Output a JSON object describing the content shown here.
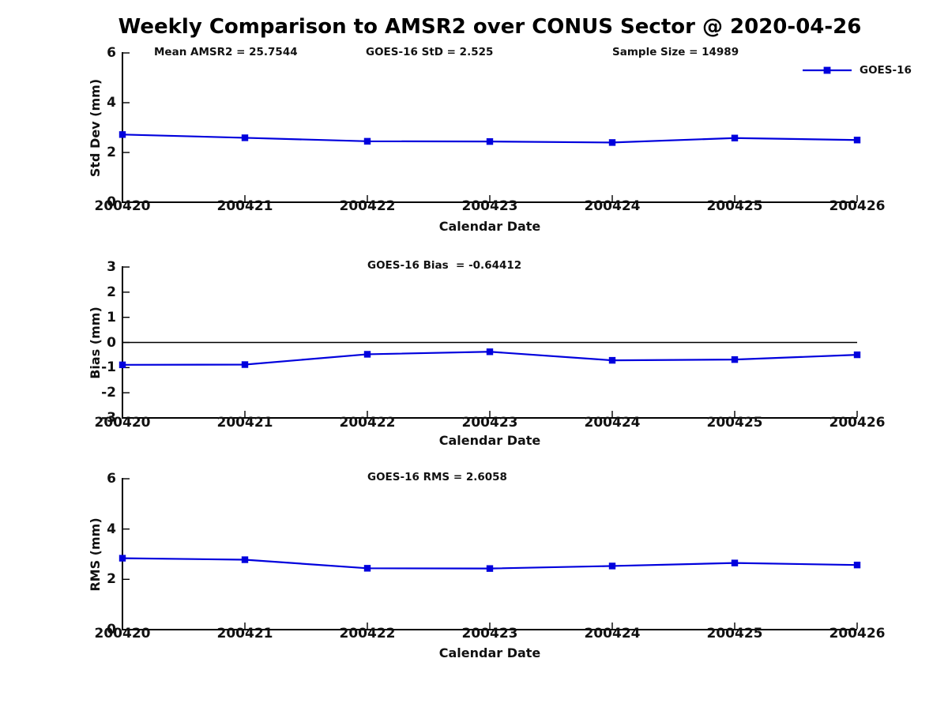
{
  "title": "Weekly Comparison to AMSR2 over CONUS Sector @ 2020-04-26",
  "colors": {
    "line": "#0000dd",
    "axis": "#000000",
    "text": "#111111",
    "background": "#ffffff"
  },
  "chart_data": [
    {
      "id": "std-dev",
      "type": "line",
      "x": [
        "200420",
        "200421",
        "200422",
        "200423",
        "200424",
        "200425",
        "200426"
      ],
      "series": [
        {
          "name": "GOES-16",
          "values": [
            2.72,
            2.59,
            2.45,
            2.44,
            2.4,
            2.58,
            2.5
          ]
        }
      ],
      "ylabel": "Std Dev (mm)",
      "xlabel": "Calendar Date",
      "ylim": [
        0,
        6
      ],
      "yticks": [
        0,
        2,
        4,
        6
      ],
      "annotations": [
        "Mean AMSR2 = 25.7544",
        "GOES-16 StD = 2.525",
        "Sample Size = 14989"
      ],
      "legend": {
        "label": "GOES-16",
        "position": "top-right"
      },
      "zero_line": false,
      "grid": false
    },
    {
      "id": "bias",
      "type": "line",
      "x": [
        "200420",
        "200421",
        "200422",
        "200423",
        "200424",
        "200425",
        "200426"
      ],
      "series": [
        {
          "name": "GOES-16",
          "values": [
            -0.89,
            -0.88,
            -0.47,
            -0.37,
            -0.71,
            -0.68,
            -0.49
          ]
        }
      ],
      "ylabel": "Bias (mm)",
      "xlabel": "Calendar Date",
      "ylim": [
        -3,
        3
      ],
      "yticks": [
        -3,
        -2,
        -1,
        0,
        1,
        2,
        3
      ],
      "annotations": [
        "GOES-16 Bias  = -0.64412"
      ],
      "zero_line": true,
      "grid": false
    },
    {
      "id": "rms",
      "type": "line",
      "x": [
        "200420",
        "200421",
        "200422",
        "200423",
        "200424",
        "200425",
        "200426"
      ],
      "series": [
        {
          "name": "GOES-16",
          "values": [
            2.84,
            2.78,
            2.44,
            2.43,
            2.53,
            2.65,
            2.57
          ]
        }
      ],
      "ylabel": "RMS (mm)",
      "xlabel": "Calendar Date",
      "ylim": [
        0,
        6
      ],
      "yticks": [
        0,
        2,
        4,
        6
      ],
      "annotations": [
        "GOES-16 RMS = 2.6058"
      ],
      "zero_line": false,
      "grid": false
    }
  ]
}
